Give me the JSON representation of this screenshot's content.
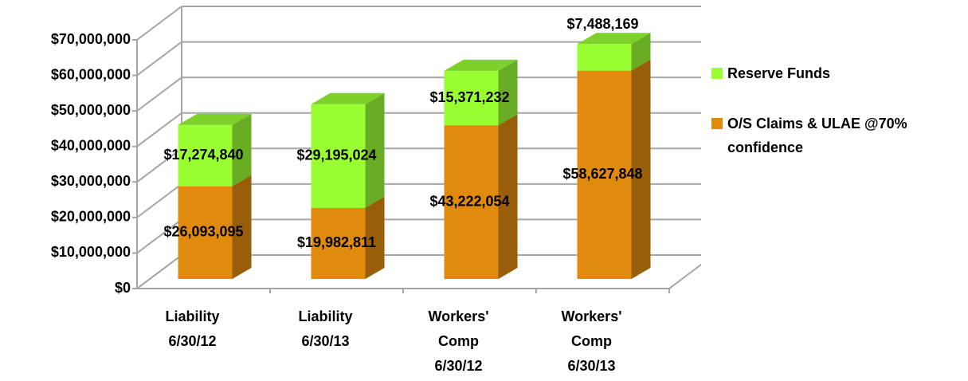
{
  "chart_data": {
    "type": "bar3d_stacked",
    "categories": [
      [
        "Liability",
        "6/30/12"
      ],
      [
        "Liability",
        "6/30/13"
      ],
      [
        "Workers'",
        "Comp",
        "6/30/12"
      ],
      [
        "Workers'",
        "Comp",
        "6/30/13"
      ]
    ],
    "series": [
      {
        "name": "O/S Claims & ULAE @70% confidence",
        "color": "#e08a0e",
        "values": [
          26093095,
          19982811,
          43222054,
          58627848
        ],
        "value_labels": [
          "$26,093,095",
          "$19,982,811",
          "$43,222,054",
          "$58,627,848"
        ]
      },
      {
        "name": "Reserve Funds",
        "color": "#99ff33",
        "values": [
          17274840,
          29195024,
          15371232,
          7488169
        ],
        "value_labels": [
          "$17,274,840",
          "$29,195,024",
          "$15,371,232",
          "$7,488,169"
        ]
      }
    ],
    "ylim": [
      0,
      70000000
    ],
    "yticks": [
      {
        "value": 0,
        "label": "$0"
      },
      {
        "value": 10000000,
        "label": "$10,000,000"
      },
      {
        "value": 20000000,
        "label": "$20,000,000"
      },
      {
        "value": 30000000,
        "label": "$30,000,000"
      },
      {
        "value": 40000000,
        "label": "$40,000,000"
      },
      {
        "value": 50000000,
        "label": "$50,000,000"
      },
      {
        "value": 60000000,
        "label": "$60,000,000"
      },
      {
        "value": 70000000,
        "label": "$70,000,000"
      }
    ],
    "grid": true,
    "legend": "right"
  }
}
